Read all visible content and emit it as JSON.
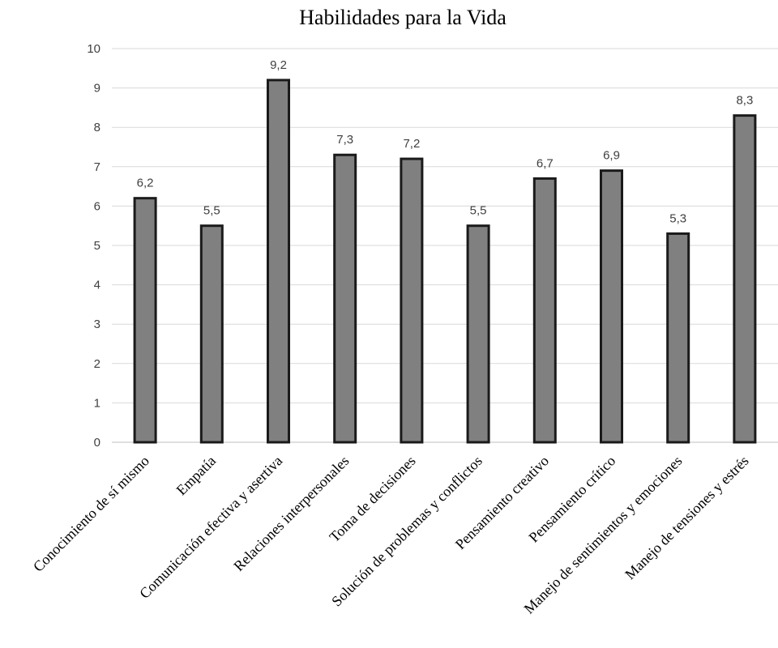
{
  "chart_data": {
    "type": "bar",
    "title": "Habilidades  para  la  Vida",
    "xlabel": "",
    "ylabel": "",
    "ylim": [
      0,
      10
    ],
    "yticks": [
      0,
      1,
      2,
      3,
      4,
      5,
      6,
      7,
      8,
      9,
      10
    ],
    "grid": true,
    "legend": "none",
    "bar_color": "#808080",
    "bar_edge_color": "#1a1a1a",
    "categories": [
      "Conocimiento de  sí mismo",
      "Empatía",
      "Comunicación efectiva y asertiva",
      "Relaciones interpersonales",
      "Toma de decisiones",
      "Solución de problemas y conflictos",
      "Pensamiento creativo",
      "Pensamiento crítico",
      "Manejo de sentimientos y emociones",
      "Manejo de tensiones y estrés"
    ],
    "values": [
      6.2,
      5.5,
      9.2,
      7.3,
      7.2,
      5.5,
      6.7,
      6.9,
      5.3,
      8.3
    ],
    "data_labels": [
      "6,2",
      "5,5",
      "9,2",
      "7,3",
      "7,2",
      "5,5",
      "6,7",
      "6,9",
      "5,3",
      "8,3"
    ]
  }
}
